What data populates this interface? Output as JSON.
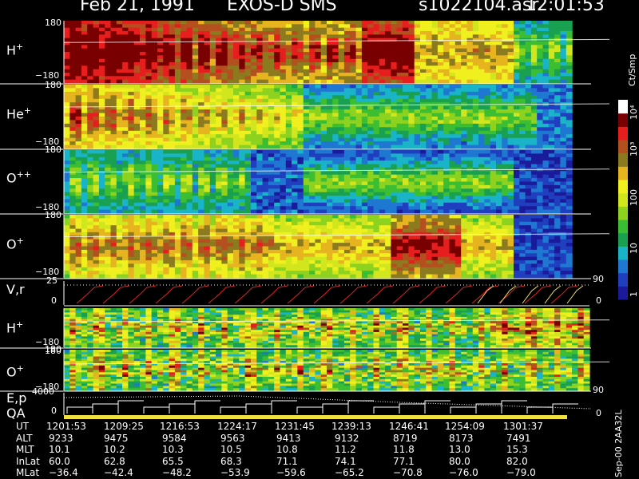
{
  "header": {
    "date": "Feb 21, 1991",
    "instrument": "EXOS-D SMS",
    "file": "s1022104.asr",
    "time": "12:01:53"
  },
  "colorbar": {
    "unit": "Ct/Smp",
    "ticks": [
      "1",
      "10",
      "100",
      "10³",
      "10⁴"
    ],
    "colors": [
      "#1a1a9a",
      "#1f3fbf",
      "#1e78d2",
      "#19b4c8",
      "#19a050",
      "#3cbe32",
      "#8cd21e",
      "#d2e61e",
      "#f0f01e",
      "#e6b41e",
      "#8c7a1e",
      "#b4501e",
      "#e61e1e",
      "#780000",
      "#ffffff"
    ]
  },
  "panels": [
    {
      "name": "H",
      "sup": "+",
      "ymax": "180",
      "ymin": "−180"
    },
    {
      "name": "He",
      "sup": "+",
      "ymax": "180",
      "ymin": "−180"
    },
    {
      "name": "O",
      "sup": "++",
      "ymax": "180",
      "ymin": "−180"
    },
    {
      "name": "O",
      "sup": "+",
      "ymax": "180",
      "ymin": "−180"
    },
    {
      "name": "H",
      "sup": "+",
      "ymax": "180",
      "ymin": "−180"
    },
    {
      "name": "O",
      "sup": "+",
      "ymax": "180",
      "ymin": "−180"
    }
  ],
  "line_panels": {
    "vr": {
      "label": "V,r",
      "ymax": "25",
      "ymin": "0",
      "right_top": "90",
      "right_bottom": "0"
    },
    "ep": {
      "label1": "E,p",
      "label2": "QA",
      "ymax": "4000",
      "ymin": "0",
      "right_top": "90",
      "right_bottom": "0"
    }
  },
  "footer_side": "Sep-00 2AA32L",
  "chart_data": {
    "type": "heatmap",
    "title": "Feb 21, 1991 EXOS-D SMS",
    "panels": [
      "H+",
      "He+",
      "O++",
      "O+",
      "H+",
      "O+"
    ],
    "ylim": [
      -180,
      180
    ],
    "colorbar_scale": "log",
    "colorbar_range": [
      1,
      10000
    ],
    "colorbar_unit": "Ct/Smp",
    "x_ticks": [
      "1201:53",
      "1209:25",
      "1216:53",
      "1224:17",
      "1231:45",
      "1239:13",
      "1246:41",
      "1254:09",
      "1301:37"
    ],
    "orbit_table": {
      "columns": [
        "1201:53",
        "1209:25",
        "1216:53",
        "1224:17",
        "1231:45",
        "1239:13",
        "1246:41",
        "1254:09",
        "1301:37"
      ],
      "rows": [
        {
          "label": "UT",
          "values": [
            "1201:53",
            "1209:25",
            "1216:53",
            "1224:17",
            "1231:45",
            "1239:13",
            "1246:41",
            "1254:09",
            "1301:37"
          ]
        },
        {
          "label": "ALT",
          "values": [
            "9233",
            "9475",
            "9584",
            "9563",
            "9413",
            "9132",
            "8719",
            "8173",
            "7491"
          ]
        },
        {
          "label": "MLT",
          "values": [
            "10.1",
            "10.2",
            "10.3",
            "10.5",
            "10.8",
            "11.2",
            "11.8",
            "13.0",
            "15.3"
          ]
        },
        {
          "label": "InLat",
          "values": [
            "60.0",
            "62.8",
            "65.5",
            "68.3",
            "71.1",
            "74.1",
            "77.1",
            "80.0",
            "82.0"
          ]
        },
        {
          "label": "MLat",
          "values": [
            "−36.4",
            "−42.4",
            "−48.2",
            "−53.9",
            "−59.6",
            "−65.2",
            "−70.8",
            "−76.0",
            "−79.0"
          ]
        }
      ]
    }
  }
}
